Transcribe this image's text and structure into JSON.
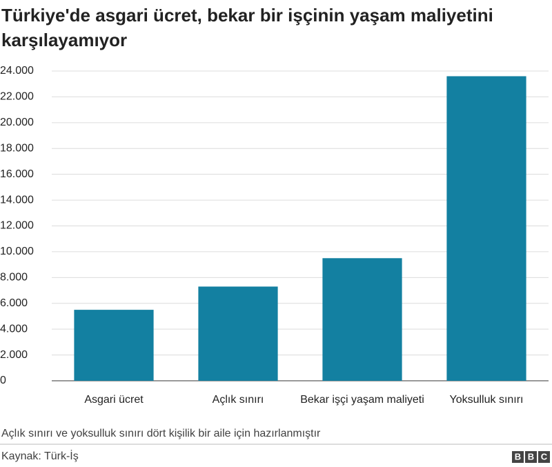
{
  "chart_data": {
    "type": "bar",
    "title": "Türkiye'de asgari ücret, bekar bir işçinin yaşam maliyetini karşılayamıyor",
    "categories": [
      "Asgari ücret",
      "Açlık sınırı",
      "Bekar işçi yaşam maliyeti",
      "Yoksulluk sınırı"
    ],
    "values": [
      5500,
      7300,
      9500,
      23600
    ],
    "color": "#1380a1",
    "ylim": [
      0,
      24000
    ],
    "yticks": [
      0,
      {
        "value": 2000,
        "label": "2.000"
      },
      {
        "value": 4000,
        "label": "4.000"
      },
      {
        "value": 6000,
        "label": "6.000"
      },
      {
        "value": 8000,
        "label": "8.000"
      },
      {
        "value": 10000,
        "label": "10.000"
      },
      {
        "value": 12000,
        "label": "12.000"
      },
      {
        "value": 14000,
        "label": "14.000"
      },
      {
        "value": 16000,
        "label": "16.000"
      },
      {
        "value": 18000,
        "label": "18.000"
      },
      {
        "value": 20000,
        "label": "20.000"
      },
      {
        "value": 22000,
        "label": "22.000"
      },
      {
        "value": 24000,
        "label": "24.000"
      }
    ],
    "grid": true,
    "note": "Açlık sınırı ve yoksulluk sınırı dört kişilik bir aile için hazırlanmıştır",
    "source": "Kaynak: Türk-İş",
    "logo": [
      "B",
      "B",
      "C"
    ]
  }
}
